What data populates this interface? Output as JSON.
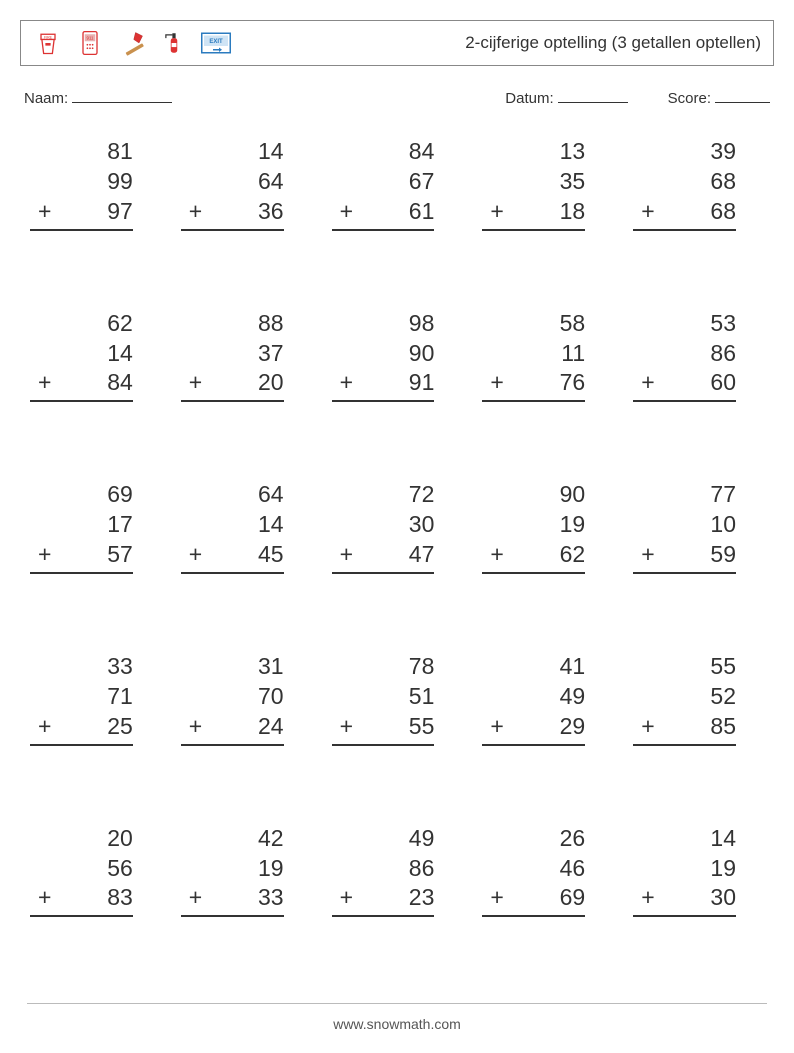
{
  "header": {
    "title": "2-cijferige optelling (3 getallen optellen)",
    "icons": [
      "fire-bucket",
      "phone-911",
      "axe",
      "fire-extinguisher",
      "exit-sign"
    ]
  },
  "info": {
    "name_label": "Naam:",
    "date_label": "Datum:",
    "score_label": "Score:"
  },
  "worksheet": {
    "type": "addition-column",
    "operator": "+",
    "rows": 5,
    "cols": 5,
    "font_size": 23,
    "text_color": "#333333",
    "rule_color": "#333333",
    "problems": [
      {
        "a": 81,
        "b": 99,
        "c": 97
      },
      {
        "a": 14,
        "b": 64,
        "c": 36
      },
      {
        "a": 84,
        "b": 67,
        "c": 61
      },
      {
        "a": 13,
        "b": 35,
        "c": 18
      },
      {
        "a": 39,
        "b": 68,
        "c": 68
      },
      {
        "a": 62,
        "b": 14,
        "c": 84
      },
      {
        "a": 88,
        "b": 37,
        "c": 20
      },
      {
        "a": 98,
        "b": 90,
        "c": 91
      },
      {
        "a": 58,
        "b": 11,
        "c": 76
      },
      {
        "a": 53,
        "b": 86,
        "c": 60
      },
      {
        "a": 69,
        "b": 17,
        "c": 57
      },
      {
        "a": 64,
        "b": 14,
        "c": 45
      },
      {
        "a": 72,
        "b": 30,
        "c": 47
      },
      {
        "a": 90,
        "b": 19,
        "c": 62
      },
      {
        "a": 77,
        "b": 10,
        "c": 59
      },
      {
        "a": 33,
        "b": 71,
        "c": 25
      },
      {
        "a": 31,
        "b": 70,
        "c": 24
      },
      {
        "a": 78,
        "b": 51,
        "c": 55
      },
      {
        "a": 41,
        "b": 49,
        "c": 29
      },
      {
        "a": 55,
        "b": 52,
        "c": 85
      },
      {
        "a": 20,
        "b": 56,
        "c": 83
      },
      {
        "a": 42,
        "b": 19,
        "c": 33
      },
      {
        "a": 49,
        "b": 86,
        "c": 23
      },
      {
        "a": 26,
        "b": 46,
        "c": 69
      },
      {
        "a": 14,
        "b": 19,
        "c": 30
      }
    ]
  },
  "footer": {
    "text": "www.snowmath.com"
  },
  "colors": {
    "page_bg": "#ffffff",
    "border": "#888888",
    "text": "#333333"
  }
}
